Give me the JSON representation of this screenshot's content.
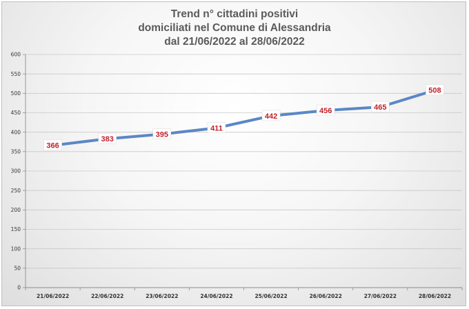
{
  "chart_data": {
    "type": "line",
    "title_lines": [
      "Trend n° cittadini positivi",
      "domiciliati nel Comune di Alessandria",
      "dal 21/06/2022 al 28/06/2022"
    ],
    "categories": [
      "21/06/2022",
      "22/06/2022",
      "23/06/2022",
      "24/06/2022",
      "25/06/2022",
      "26/06/2022",
      "27/06/2022",
      "28/06/2022"
    ],
    "values": [
      366,
      383,
      395,
      411,
      442,
      456,
      465,
      508
    ],
    "data_labels": [
      "366",
      "383",
      "395",
      "411",
      "442",
      "456",
      "465",
      "508"
    ],
    "yticks": [
      "0",
      "50",
      "100",
      "150",
      "200",
      "250",
      "300",
      "350",
      "400",
      "450",
      "500",
      "550",
      "600"
    ],
    "ylim": [
      0,
      600
    ],
    "ystep": 50,
    "grid": true,
    "legend": "none",
    "line_color": "#5b87c5",
    "label_color": "#c0202a",
    "xlabel": "",
    "ylabel": ""
  }
}
